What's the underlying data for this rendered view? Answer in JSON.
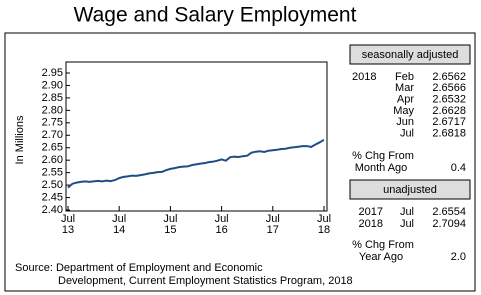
{
  "chart_data": {
    "type": "line",
    "title": "Wage and Salary Employment",
    "y_label": "In Millions",
    "categories": [
      "Jul 13",
      null,
      null,
      null,
      null,
      null,
      null,
      null,
      null,
      null,
      null,
      null,
      "Jul 14",
      null,
      null,
      null,
      null,
      null,
      null,
      null,
      null,
      null,
      null,
      null,
      "Jul 15",
      null,
      null,
      null,
      null,
      null,
      null,
      null,
      null,
      null,
      null,
      null,
      "Jul 16",
      null,
      null,
      null,
      null,
      null,
      null,
      null,
      null,
      null,
      null,
      null,
      "Jul 17",
      null,
      null,
      null,
      null,
      null,
      null,
      null,
      null,
      null,
      null,
      null,
      "Jul 18"
    ],
    "values": [
      2.49,
      2.505,
      2.51,
      2.513,
      2.515,
      2.513,
      2.515,
      2.517,
      2.515,
      2.518,
      2.516,
      2.52,
      2.528,
      2.533,
      2.535,
      2.538,
      2.537,
      2.54,
      2.543,
      2.547,
      2.549,
      2.552,
      2.553,
      2.56,
      2.565,
      2.568,
      2.572,
      2.574,
      2.575,
      2.58,
      2.583,
      2.586,
      2.588,
      2.592,
      2.594,
      2.598,
      2.603,
      2.598,
      2.612,
      2.614,
      2.613,
      2.616,
      2.618,
      2.63,
      2.634,
      2.636,
      2.633,
      2.638,
      2.64,
      2.642,
      2.645,
      2.646,
      2.65,
      2.652,
      2.654,
      2.6562,
      2.6566,
      2.6532,
      2.6628,
      2.6717,
      2.6818
    ],
    "color": "#1f4e87",
    "ylim": [
      2.4,
      2.95
    ],
    "yticks": [
      {
        "value": 2.4,
        "label": "2.40"
      },
      {
        "value": 2.45,
        "label": "2.45"
      },
      {
        "value": 2.5,
        "label": "2.50"
      },
      {
        "value": 2.55,
        "label": "2.55"
      },
      {
        "value": 2.6,
        "label": "2.60"
      },
      {
        "value": 2.65,
        "label": "2.65"
      },
      {
        "value": 2.7,
        "label": "2.70"
      },
      {
        "value": 2.75,
        "label": "2.75"
      },
      {
        "value": 2.8,
        "label": "2.80"
      },
      {
        "value": 2.85,
        "label": "2.85"
      },
      {
        "value": 2.9,
        "label": "2.90"
      },
      {
        "value": 2.95,
        "label": "2.95"
      }
    ],
    "source": [
      "Source: Department of Employment and Economic",
      "Development, Current Employment Statistics Program, 2018"
    ]
  },
  "side_panel": {
    "seasonal": {
      "header": "seasonally adjusted",
      "year": "2018",
      "rows": [
        [
          "Feb",
          "2.6562"
        ],
        [
          "Mar",
          "2.6566"
        ],
        [
          "Apr",
          "2.6532"
        ],
        [
          "May",
          "2.6628"
        ],
        [
          "Jun",
          "2.6717"
        ],
        [
          "Jul",
          "2.6818"
        ]
      ],
      "change_label": [
        "% Chg From",
        "Month Ago"
      ],
      "change": "0.4"
    },
    "unadjusted": {
      "header": "unadjusted",
      "rows": [
        [
          "2017",
          "Jul",
          "2.6554"
        ],
        [
          "2018",
          "Jul",
          "2.7094"
        ]
      ],
      "change_label": [
        "% Chg From",
        "Year Ago"
      ],
      "change": "2.0"
    }
  }
}
